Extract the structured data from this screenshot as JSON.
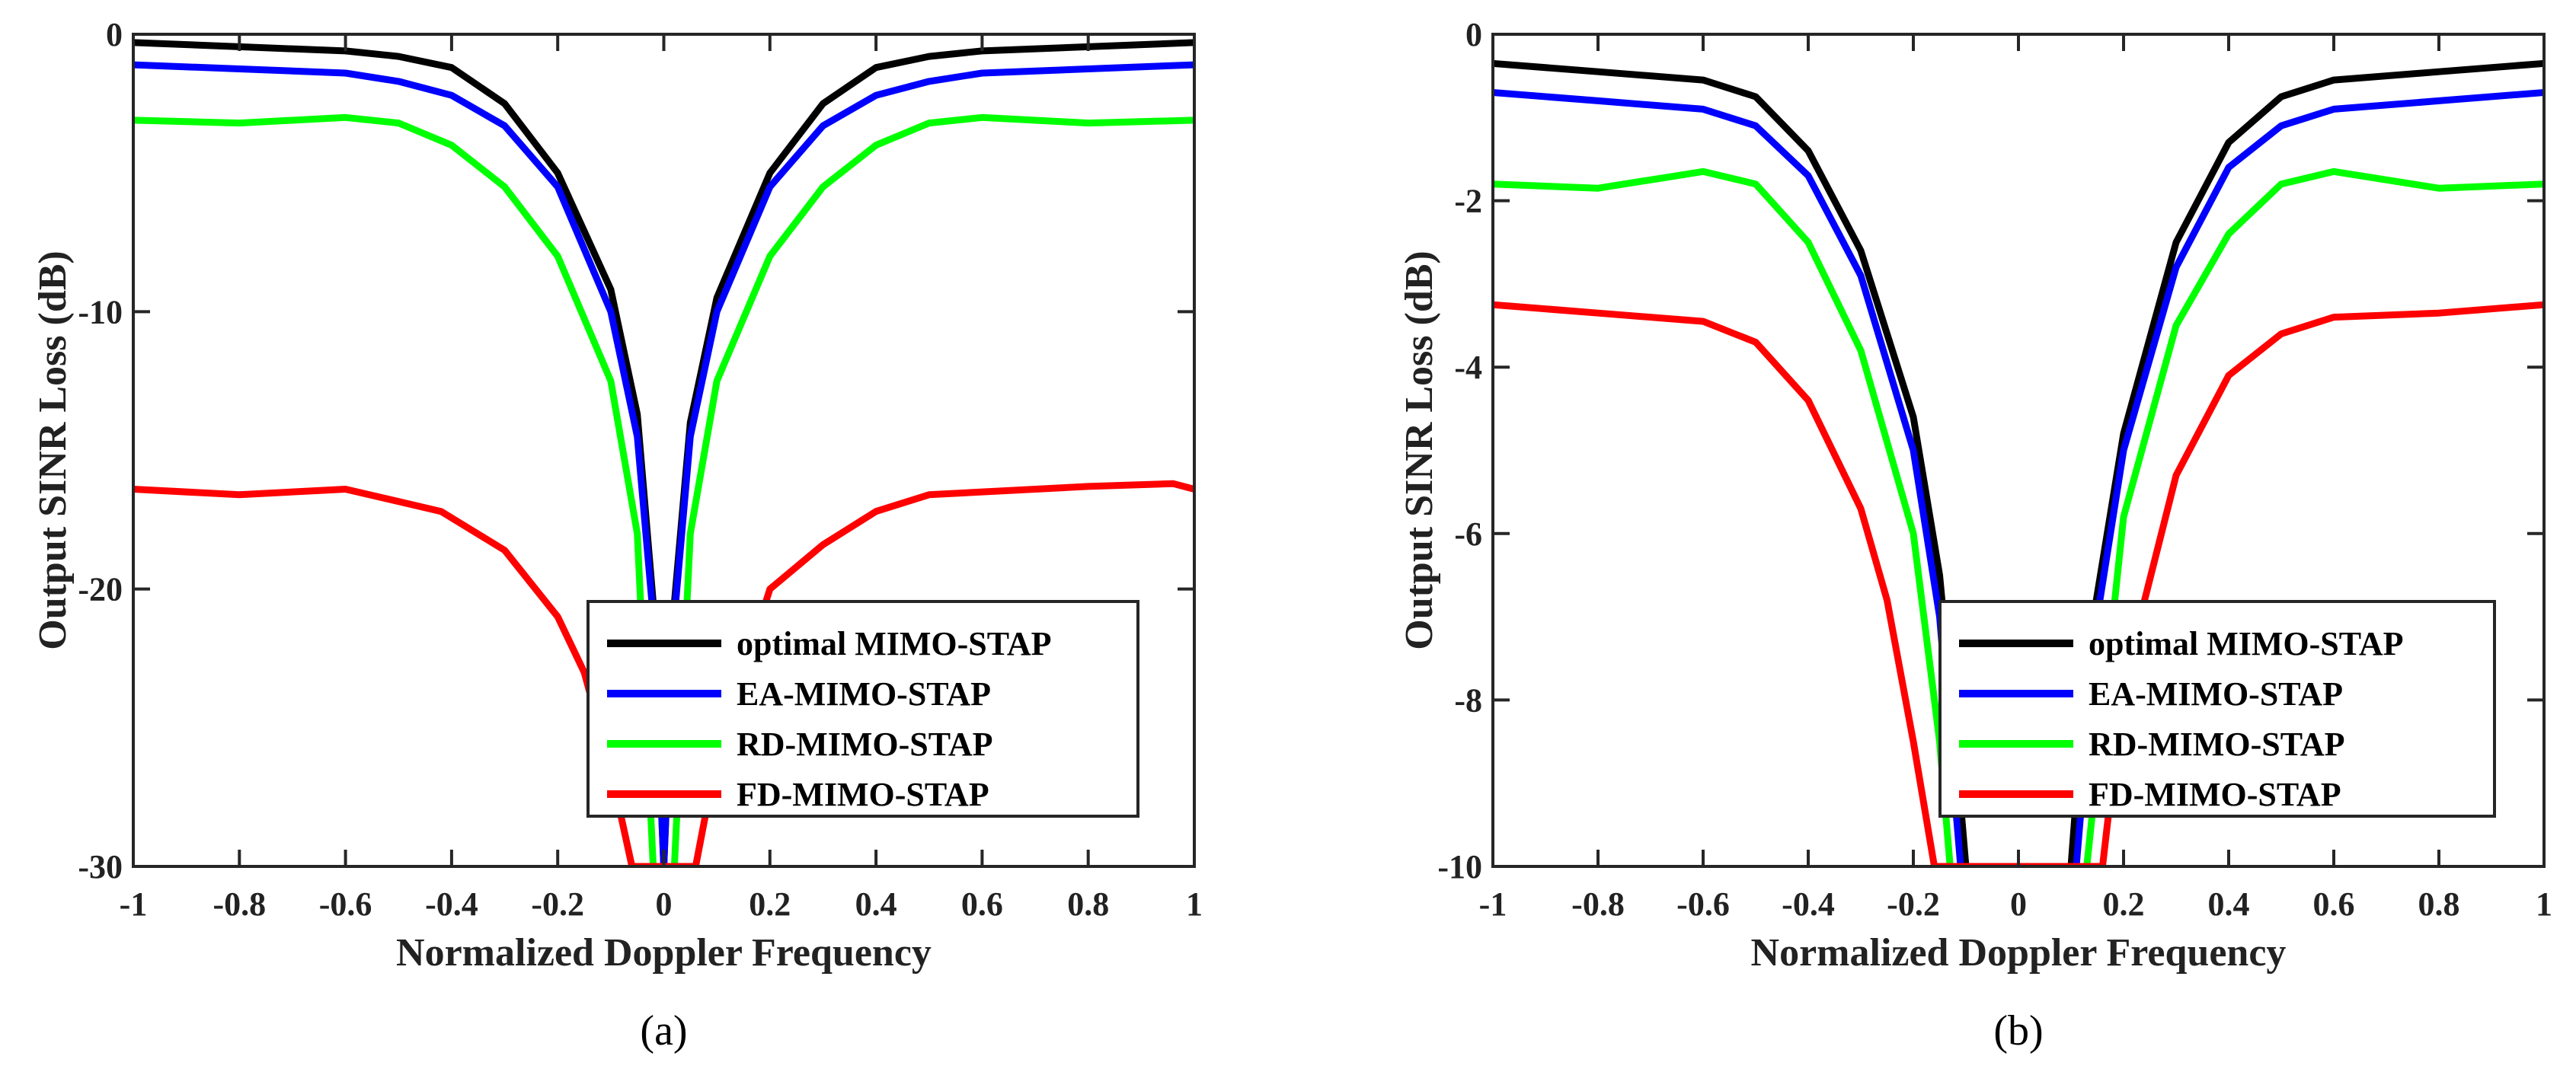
{
  "chart_data": [
    {
      "type": "line",
      "panel_label": "(a)",
      "xlabel": "Normalized Doppler Frequency",
      "ylabel": "Output SINR Loss (dB)",
      "xlim": [
        -1,
        1
      ],
      "ylim": [
        -30,
        0
      ],
      "xticks": [
        "-1",
        "-0.8",
        "-0.6",
        "-0.4",
        "-0.2",
        "0",
        "0.2",
        "0.4",
        "0.6",
        "0.8",
        "1"
      ],
      "yticks": [
        "0",
        "-10",
        "-20",
        "-30"
      ],
      "grid": false,
      "legend_position": "bottom-right",
      "series": [
        {
          "name": "optimal MIMO-STAP",
          "color": "#000000",
          "x": [
            -1,
            -0.8,
            -0.6,
            -0.5,
            -0.4,
            -0.3,
            -0.2,
            -0.1,
            -0.05,
            -0.02,
            0,
            0.02,
            0.05,
            0.1,
            0.2,
            0.3,
            0.4,
            0.5,
            0.6,
            0.8,
            1
          ],
          "y": [
            -0.3,
            -0.45,
            -0.6,
            -0.8,
            -1.2,
            -2.5,
            -5,
            -9.2,
            -13.7,
            -20.5,
            -30,
            -20.5,
            -14,
            -9.5,
            -5,
            -2.5,
            -1.2,
            -0.8,
            -0.6,
            -0.45,
            -0.3
          ]
        },
        {
          "name": "EA-MIMO-STAP",
          "color": "#0000ff",
          "x": [
            -1,
            -0.8,
            -0.6,
            -0.5,
            -0.4,
            -0.3,
            -0.2,
            -0.1,
            -0.05,
            -0.02,
            0,
            0.02,
            0.05,
            0.1,
            0.2,
            0.3,
            0.4,
            0.5,
            0.6,
            0.8,
            1
          ],
          "y": [
            -1.1,
            -1.25,
            -1.4,
            -1.7,
            -2.2,
            -3.3,
            -5.5,
            -10,
            -14.5,
            -21,
            -30,
            -21,
            -14.5,
            -10,
            -5.5,
            -3.3,
            -2.2,
            -1.7,
            -1.4,
            -1.25,
            -1.1
          ]
        },
        {
          "name": "RD-MIMO-STAP",
          "color": "#00ff00",
          "x": [
            -1,
            -0.8,
            -0.6,
            -0.5,
            -0.4,
            -0.3,
            -0.2,
            -0.1,
            -0.05,
            -0.02,
            0.02,
            0.05,
            0.1,
            0.2,
            0.3,
            0.4,
            0.5,
            0.6,
            0.8,
            1
          ],
          "y": [
            -3.1,
            -3.2,
            -3.0,
            -3.2,
            -4,
            -5.5,
            -8,
            -12.5,
            -18,
            -30,
            -30,
            -18,
            -12.5,
            -8,
            -5.5,
            -4,
            -3.2,
            -3.0,
            -3.2,
            -3.1
          ]
        },
        {
          "name": "FD-MIMO-STAP",
          "color": "#ff0000",
          "x": [
            -1,
            -0.8,
            -0.6,
            -0.42,
            -0.3,
            -0.2,
            -0.15,
            -0.1,
            -0.06,
            0.06,
            0.1,
            0.2,
            0.3,
            0.4,
            0.5,
            0.8,
            0.96,
            1
          ],
          "y": [
            -16.4,
            -16.6,
            -16.4,
            -17.2,
            -18.6,
            -21,
            -23,
            -26.5,
            -30,
            -30,
            -26,
            -20,
            -18.4,
            -17.2,
            -16.6,
            -16.3,
            -16.2,
            -16.4
          ]
        }
      ]
    },
    {
      "type": "line",
      "panel_label": "(b)",
      "xlabel": "Normalized Doppler Frequency",
      "ylabel": "Output SINR Loss (dB)",
      "xlim": [
        -1,
        1
      ],
      "ylim": [
        -10,
        0
      ],
      "xticks": [
        "-1",
        "-0.8",
        "-0.6",
        "-0.4",
        "-0.2",
        "0",
        "0.2",
        "0.4",
        "0.6",
        "0.8",
        "1"
      ],
      "yticks": [
        "0",
        "-2",
        "-4",
        "-6",
        "-8",
        "-10"
      ],
      "grid": false,
      "legend_position": "bottom-right",
      "series": [
        {
          "name": "optimal MIMO-STAP",
          "color": "#000000",
          "x": [
            -1,
            -0.8,
            -0.6,
            -0.5,
            -0.4,
            -0.3,
            -0.2,
            -0.15,
            -0.12,
            -0.1,
            0.1,
            0.13,
            0.2,
            0.3,
            0.4,
            0.5,
            0.6,
            0.8,
            1
          ],
          "y": [
            -0.35,
            -0.45,
            -0.55,
            -0.75,
            -1.4,
            -2.6,
            -4.6,
            -6.5,
            -8.5,
            -10,
            -10,
            -7.5,
            -4.8,
            -2.5,
            -1.3,
            -0.75,
            -0.55,
            -0.45,
            -0.35
          ]
        },
        {
          "name": "EA-MIMO-STAP",
          "color": "#0000ff",
          "x": [
            -1,
            -0.8,
            -0.6,
            -0.5,
            -0.4,
            -0.3,
            -0.2,
            -0.15,
            -0.11,
            0.11,
            0.15,
            0.2,
            0.3,
            0.4,
            0.5,
            0.6,
            0.8,
            1
          ],
          "y": [
            -0.7,
            -0.8,
            -0.9,
            -1.1,
            -1.7,
            -2.9,
            -5,
            -7,
            -10,
            -10,
            -7,
            -5,
            -2.8,
            -1.6,
            -1.1,
            -0.9,
            -0.8,
            -0.7
          ]
        },
        {
          "name": "RD-MIMO-STAP",
          "color": "#00ff00",
          "x": [
            -1,
            -0.8,
            -0.6,
            -0.5,
            -0.4,
            -0.3,
            -0.2,
            -0.15,
            -0.13,
            0.13,
            0.2,
            0.3,
            0.4,
            0.5,
            0.6,
            0.8,
            1
          ],
          "y": [
            -1.8,
            -1.85,
            -1.65,
            -1.8,
            -2.5,
            -3.8,
            -6,
            -8.5,
            -10,
            -10,
            -5.8,
            -3.5,
            -2.4,
            -1.8,
            -1.65,
            -1.85,
            -1.8
          ]
        },
        {
          "name": "FD-MIMO-STAP",
          "color": "#ff0000",
          "x": [
            -1,
            -0.8,
            -0.6,
            -0.5,
            -0.4,
            -0.3,
            -0.25,
            -0.2,
            -0.16,
            0.16,
            0.2,
            0.3,
            0.4,
            0.5,
            0.6,
            0.8,
            1
          ],
          "y": [
            -3.25,
            -3.35,
            -3.45,
            -3.7,
            -4.4,
            -5.7,
            -6.8,
            -8.5,
            -10,
            -10,
            -7.8,
            -5.3,
            -4.1,
            -3.6,
            -3.4,
            -3.35,
            -3.25
          ]
        }
      ]
    }
  ]
}
